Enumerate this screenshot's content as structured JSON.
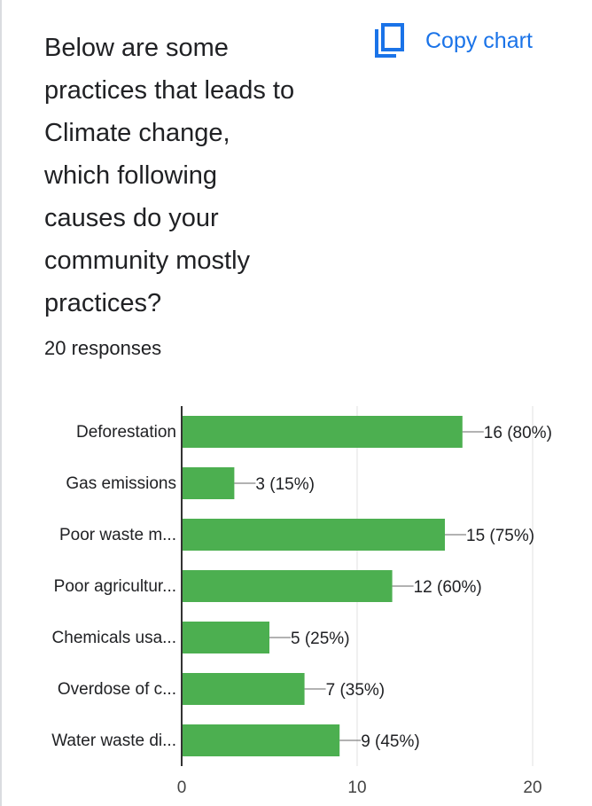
{
  "question": {
    "lines": [
      "Below are some",
      "practices that leads to",
      "Climate change,",
      "which following",
      "causes do your",
      "community mostly",
      "practices?"
    ],
    "responses": "20 responses"
  },
  "toolbar": {
    "copy_label": "Copy chart",
    "copy_icon": "copy-icon"
  },
  "colors": {
    "bar": "#4caf50",
    "accent": "#1a73e8",
    "text": "#202124",
    "axis": "#333333",
    "grid": "#e0e0e0"
  },
  "chart_data": {
    "type": "bar",
    "orientation": "horizontal",
    "categories": [
      "Deforestation",
      "Gas emissions",
      "Poor waste m...",
      "Poor agricultur...",
      "Chemicals usa...",
      "Overdose of c...",
      "Water waste di..."
    ],
    "values": [
      16,
      3,
      15,
      12,
      5,
      7,
      9
    ],
    "data_labels": [
      "16 (80%)",
      "3 (15%)",
      "15 (75%)",
      "12 (60%)",
      "5 (25%)",
      "7 (35%)",
      "9 (45%)"
    ],
    "xlim": [
      0,
      20
    ],
    "x_ticks": [
      0,
      10,
      20
    ],
    "x_tick_labels": [
      "0",
      "10",
      "20"
    ],
    "grid": true,
    "legend": "none"
  }
}
